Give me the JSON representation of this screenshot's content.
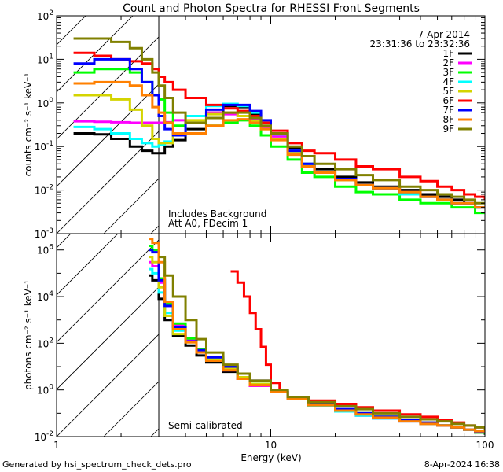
{
  "title": "Count and Photon Spectra for RHESSI Front Segments",
  "footer_left": "Generated by hsi_spectrum_check_dets.pro",
  "footer_right": "8-Apr-2024 16:38",
  "legend_header": [
    "7-Apr-2014",
    "23:31:36 to 23:32:36"
  ],
  "legend_placement": "top-right",
  "chart_data": [
    {
      "type": "line",
      "panel": "top",
      "title": "Count and Photon Spectra for RHESSI Front Segments",
      "xlabel": "Energy (keV)",
      "ylabel": "counts cm^-2 s^-1 keV^-1",
      "xscale": "log",
      "yscale": "log",
      "xlim": [
        1,
        100
      ],
      "ylim": [
        0.001,
        100
      ],
      "yticks": [
        "10^-3",
        "10^-2",
        "10^-1",
        "10^0",
        "10^1",
        "10^2"
      ],
      "annotations": [
        "Includes Background",
        "Att A0, FDecim 1"
      ],
      "threshold_keV": 3,
      "series": [
        {
          "name": "1F",
          "color": "#000000",
          "x": [
            1.2,
            1.5,
            1.8,
            2.2,
            2.5,
            2.8,
            3.0,
            3.2,
            3.5,
            4,
            5,
            6,
            7,
            8,
            9,
            10,
            12,
            14,
            16,
            20,
            25,
            30,
            40,
            50,
            60,
            70,
            80,
            90,
            100
          ],
          "y": [
            0.2,
            0.19,
            0.15,
            0.1,
            0.08,
            0.07,
            0.07,
            0.1,
            0.14,
            0.25,
            0.6,
            0.85,
            0.8,
            0.55,
            0.35,
            0.2,
            0.09,
            0.04,
            0.03,
            0.02,
            0.015,
            0.012,
            0.01,
            0.008,
            0.007,
            0.006,
            0.005,
            0.004,
            0.004
          ]
        },
        {
          "name": "2F",
          "color": "#ff00ff",
          "x": [
            1.2,
            1.5,
            1.8,
            2.2,
            2.5,
            2.8,
            3.0,
            3.2,
            3.5,
            4,
            5,
            6,
            7,
            8,
            9,
            10,
            12,
            14,
            16,
            20,
            25,
            30,
            40,
            50,
            60,
            70,
            80,
            90,
            100
          ],
          "y": [
            0.38,
            0.37,
            0.36,
            0.35,
            0.35,
            0.35,
            0.35,
            0.36,
            0.4,
            0.5,
            0.6,
            0.55,
            0.5,
            0.4,
            0.28,
            0.17,
            0.07,
            0.035,
            0.025,
            0.018,
            0.013,
            0.011,
            0.009,
            0.007,
            0.006,
            0.005,
            0.005,
            0.004,
            0.004
          ]
        },
        {
          "name": "3F",
          "color": "#00ff00",
          "x": [
            1.2,
            1.5,
            1.8,
            2.2,
            2.5,
            2.8,
            3.0,
            3.2,
            3.5,
            4,
            5,
            6,
            7,
            8,
            9,
            10,
            12,
            14,
            16,
            20,
            25,
            30,
            40,
            50,
            60,
            70,
            80,
            90,
            100
          ],
          "y": [
            5,
            6,
            6,
            5,
            3,
            1.5,
            1.2,
            0.6,
            0.3,
            0.2,
            0.3,
            0.35,
            0.4,
            0.3,
            0.18,
            0.1,
            0.05,
            0.025,
            0.02,
            0.012,
            0.009,
            0.008,
            0.006,
            0.005,
            0.005,
            0.004,
            0.004,
            0.003,
            0.003
          ]
        },
        {
          "name": "4F",
          "color": "#00ffff",
          "x": [
            1.2,
            1.5,
            1.8,
            2.2,
            2.5,
            2.8,
            3.0,
            3.2,
            3.5,
            4,
            5,
            6,
            7,
            8,
            9,
            10,
            12,
            14,
            16,
            20,
            25,
            30,
            40,
            50,
            60,
            70,
            80,
            90,
            100
          ],
          "y": [
            0.28,
            0.25,
            0.2,
            0.15,
            0.12,
            0.1,
            0.11,
            0.13,
            0.2,
            0.5,
            0.85,
            0.95,
            0.85,
            0.6,
            0.35,
            0.19,
            0.08,
            0.04,
            0.025,
            0.017,
            0.013,
            0.011,
            0.008,
            0.007,
            0.006,
            0.005,
            0.005,
            0.004,
            0.004
          ]
        },
        {
          "name": "5F",
          "color": "#d4d400",
          "x": [
            1.2,
            1.5,
            1.8,
            2.2,
            2.5,
            2.8,
            3.0,
            3.2,
            3.5,
            4,
            5,
            6,
            7,
            8,
            9,
            10,
            12,
            14,
            16,
            20,
            25,
            30,
            40,
            50,
            60,
            70,
            80,
            90,
            100
          ],
          "y": [
            1.5,
            1.5,
            1.2,
            0.7,
            0.3,
            0.15,
            0.12,
            0.12,
            0.2,
            0.4,
            0.55,
            0.6,
            0.5,
            0.38,
            0.25,
            0.15,
            0.07,
            0.035,
            0.025,
            0.017,
            0.013,
            0.011,
            0.009,
            0.007,
            0.006,
            0.005,
            0.005,
            0.004,
            0.004
          ]
        },
        {
          "name": "6F",
          "color": "#ff0000",
          "x": [
            1.2,
            1.5,
            1.8,
            2.2,
            2.5,
            2.8,
            3.0,
            3.2,
            3.5,
            4,
            5,
            6,
            7,
            8,
            9,
            10,
            12,
            14,
            16,
            20,
            25,
            30,
            40,
            50,
            60,
            70,
            80,
            90,
            100
          ],
          "y": [
            14,
            12,
            10,
            9,
            8,
            6,
            4,
            3,
            2,
            1.3,
            0.9,
            0.75,
            0.65,
            0.5,
            0.35,
            0.23,
            0.12,
            0.08,
            0.07,
            0.05,
            0.035,
            0.03,
            0.02,
            0.016,
            0.012,
            0.01,
            0.008,
            0.007,
            0.006
          ]
        },
        {
          "name": "7F",
          "color": "#0000ff",
          "x": [
            1.2,
            1.5,
            1.8,
            2.2,
            2.5,
            2.8,
            3.0,
            3.2,
            3.5,
            4,
            5,
            6,
            7,
            8,
            9,
            10,
            12,
            14,
            16,
            20,
            25,
            30,
            40,
            50,
            60,
            70,
            80,
            90,
            100
          ],
          "y": [
            8,
            10,
            10,
            6,
            3,
            1.5,
            0.5,
            0.25,
            0.18,
            0.35,
            0.7,
            0.9,
            0.9,
            0.65,
            0.4,
            0.2,
            0.08,
            0.04,
            0.025,
            0.018,
            0.013,
            0.011,
            0.009,
            0.007,
            0.006,
            0.005,
            0.005,
            0.004,
            0.004
          ]
        },
        {
          "name": "8F",
          "color": "#ff8000",
          "x": [
            1.2,
            1.5,
            1.8,
            2.2,
            2.5,
            2.8,
            3.0,
            3.2,
            3.5,
            4,
            5,
            6,
            7,
            8,
            9,
            10,
            12,
            14,
            16,
            20,
            25,
            30,
            40,
            50,
            60,
            70,
            80,
            90,
            100
          ],
          "y": [
            2.8,
            3,
            3,
            2.5,
            1.5,
            0.8,
            0.6,
            0.35,
            0.2,
            0.2,
            0.3,
            0.4,
            0.42,
            0.35,
            0.25,
            0.14,
            0.065,
            0.035,
            0.025,
            0.017,
            0.013,
            0.011,
            0.009,
            0.007,
            0.006,
            0.005,
            0.005,
            0.004,
            0.004
          ]
        },
        {
          "name": "9F",
          "color": "#808000",
          "x": [
            1.2,
            1.5,
            1.8,
            2.2,
            2.5,
            2.8,
            3.0,
            3.2,
            3.5,
            4,
            5,
            6,
            7,
            8,
            9,
            10,
            12,
            14,
            16,
            20,
            25,
            30,
            40,
            50,
            60,
            70,
            80,
            90,
            100
          ],
          "y": [
            30,
            30,
            25,
            18,
            10,
            5,
            2.5,
            1.3,
            0.6,
            0.35,
            0.45,
            0.6,
            0.6,
            0.45,
            0.3,
            0.2,
            0.1,
            0.06,
            0.04,
            0.03,
            0.022,
            0.017,
            0.012,
            0.01,
            0.008,
            0.007,
            0.006,
            0.005,
            0.005
          ]
        }
      ]
    },
    {
      "type": "line",
      "panel": "bottom",
      "xlabel": "Energy (keV)",
      "ylabel": "photons cm^-2 s^-1 keV^-1",
      "xscale": "log",
      "yscale": "log",
      "xlim": [
        1,
        100
      ],
      "ylim": [
        0.01,
        5000000
      ],
      "yticks": [
        "10^-2",
        "10^0",
        "10^2",
        "10^4",
        "10^6"
      ],
      "xticks": [
        "1",
        "10",
        "100"
      ],
      "annotations": [
        "Semi-calibrated"
      ],
      "threshold_keV": 3,
      "series": [
        {
          "name": "1F",
          "color": "#000000",
          "x": [
            2.7,
            2.8,
            3.0,
            3.2,
            3.5,
            4,
            4.5,
            5,
            6,
            7,
            8,
            10,
            12,
            15,
            20,
            25,
            30,
            40,
            50,
            60,
            70,
            80,
            90,
            100
          ],
          "y": [
            80000,
            50000,
            8000,
            1000,
            200,
            80,
            30,
            15,
            6,
            3,
            1.5,
            0.8,
            0.4,
            0.25,
            0.15,
            0.1,
            0.07,
            0.05,
            0.04,
            0.03,
            0.025,
            0.02,
            0.015,
            0.012
          ]
        },
        {
          "name": "2F",
          "color": "#ff00ff",
          "x": [
            2.7,
            2.8,
            3.0,
            3.2,
            3.5,
            4,
            4.5,
            5,
            6,
            7,
            8,
            10,
            12,
            15,
            20,
            25,
            30,
            40,
            50,
            60,
            70,
            80,
            90,
            100
          ],
          "y": [
            300000,
            200000,
            40000,
            4000,
            600,
            150,
            50,
            20,
            7,
            3,
            1.5,
            0.8,
            0.4,
            0.22,
            0.13,
            0.08,
            0.06,
            0.045,
            0.035,
            0.03,
            0.025,
            0.02,
            0.017,
            0.015
          ]
        },
        {
          "name": "3F",
          "color": "#00ff00",
          "x": [
            2.7,
            2.8,
            3.0,
            3.2,
            3.5,
            4,
            4.5,
            5,
            6,
            7,
            8,
            10,
            12,
            15,
            20,
            25,
            30,
            40,
            50,
            60,
            70,
            80,
            90,
            100
          ],
          "y": [
            1500000,
            1000000,
            60000,
            5000,
            700,
            160,
            55,
            22,
            8,
            3.5,
            1.8,
            0.9,
            0.45,
            0.25,
            0.15,
            0.1,
            0.07,
            0.05,
            0.04,
            0.03,
            0.025,
            0.02,
            0.015,
            0.013
          ]
        },
        {
          "name": "4F",
          "color": "#00ffff",
          "x": [
            2.7,
            2.8,
            3.0,
            3.2,
            3.5,
            4,
            4.5,
            5,
            6,
            7,
            8,
            10,
            12,
            15,
            20,
            25,
            30,
            40,
            50,
            60,
            70,
            80,
            90,
            100
          ],
          "y": [
            150000,
            100000,
            15000,
            2000,
            350,
            120,
            45,
            20,
            8,
            3.5,
            1.7,
            0.85,
            0.4,
            0.2,
            0.12,
            0.08,
            0.06,
            0.045,
            0.035,
            0.03,
            0.025,
            0.02,
            0.017,
            0.015
          ]
        },
        {
          "name": "5F",
          "color": "#d4d400",
          "x": [
            2.7,
            2.8,
            3.0,
            3.2,
            3.5,
            4,
            4.5,
            5,
            6,
            7,
            8,
            10,
            12,
            15,
            20,
            25,
            30,
            40,
            50,
            60,
            70,
            80,
            90,
            100
          ],
          "y": [
            500000,
            300000,
            25000,
            1500,
            250,
            110,
            45,
            20,
            8,
            3.5,
            1.8,
            0.9,
            0.45,
            0.25,
            0.15,
            0.1,
            0.07,
            0.05,
            0.04,
            0.03,
            0.025,
            0.02,
            0.017,
            0.015
          ]
        },
        {
          "name": "6F",
          "color": "#ff0000",
          "x": [
            6.5,
            7,
            7.5,
            8,
            8.5,
            9,
            9.5,
            10,
            11,
            12,
            15,
            20,
            25,
            30,
            40,
            50,
            60,
            70,
            80,
            90,
            100
          ],
          "y": [
            120000,
            40000,
            10000,
            2000,
            400,
            70,
            12,
            2,
            0.8,
            0.5,
            0.35,
            0.25,
            0.18,
            0.13,
            0.09,
            0.07,
            0.05,
            0.04,
            0.03,
            0.025,
            0.02
          ]
        },
        {
          "name": "7F",
          "color": "#0000ff",
          "x": [
            2.7,
            2.8,
            3.0,
            3.2,
            3.5,
            4,
            4.5,
            5,
            6,
            7,
            8,
            10,
            12,
            15,
            20,
            25,
            30,
            40,
            50,
            60,
            70,
            80,
            90,
            100
          ],
          "y": [
            1000000,
            800000,
            50000,
            4000,
            500,
            120,
            50,
            25,
            10,
            5,
            2.5,
            1,
            0.45,
            0.25,
            0.15,
            0.1,
            0.07,
            0.05,
            0.04,
            0.03,
            0.025,
            0.02,
            0.016,
            0.014
          ]
        },
        {
          "name": "8F",
          "color": "#ff8000",
          "x": [
            2.7,
            2.8,
            3.0,
            3.2,
            3.5,
            4,
            4.5,
            5,
            6,
            7,
            8,
            10,
            12,
            15,
            20,
            25,
            30,
            40,
            50,
            60,
            70,
            80,
            90,
            100
          ],
          "y": [
            3000000,
            2000000,
            300000,
            6000,
            400,
            110,
            40,
            18,
            7,
            3,
            1.6,
            0.8,
            0.4,
            0.22,
            0.13,
            0.09,
            0.065,
            0.045,
            0.035,
            0.03,
            0.025,
            0.02,
            0.017,
            0.015
          ]
        },
        {
          "name": "9F",
          "color": "#808000",
          "x": [
            3.0,
            3.2,
            3.5,
            4,
            4.5,
            5,
            6,
            7,
            8,
            10,
            12,
            15,
            20,
            25,
            30,
            40,
            50,
            60,
            70,
            80,
            90,
            100
          ],
          "y": [
            500000,
            80000,
            10000,
            1000,
            150,
            40,
            12,
            5,
            2.5,
            1,
            0.5,
            0.3,
            0.2,
            0.15,
            0.1,
            0.07,
            0.055,
            0.045,
            0.035,
            0.03,
            0.025,
            0.02
          ]
        }
      ]
    }
  ]
}
